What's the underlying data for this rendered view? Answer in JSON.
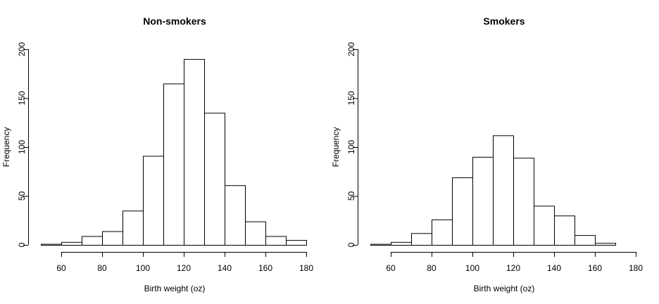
{
  "chart_data": [
    {
      "type": "bar",
      "title": "Non-smokers",
      "xlabel": "Birth weight (oz)",
      "ylabel": "Frequency",
      "bin_edges": [
        50,
        60,
        70,
        80,
        90,
        100,
        110,
        120,
        130,
        140,
        150,
        160,
        170,
        180
      ],
      "values": [
        1,
        3,
        9,
        14,
        35,
        91,
        165,
        190,
        135,
        61,
        24,
        9,
        5
      ],
      "xlim": [
        50,
        180
      ],
      "ylim": [
        0,
        200
      ],
      "xticks": [
        60,
        80,
        100,
        120,
        140,
        160,
        180
      ],
      "yticks": [
        0,
        50,
        100,
        150,
        200
      ]
    },
    {
      "type": "bar",
      "title": "Smokers",
      "xlabel": "Birth weight (oz)",
      "ylabel": "Frequency",
      "bin_edges": [
        50,
        60,
        70,
        80,
        90,
        100,
        110,
        120,
        130,
        140,
        150,
        160,
        170
      ],
      "values": [
        1,
        3,
        12,
        26,
        69,
        90,
        112,
        89,
        40,
        30,
        10,
        2
      ],
      "xlim": [
        50,
        180
      ],
      "ylim": [
        0,
        200
      ],
      "xticks": [
        60,
        80,
        100,
        120,
        140,
        160,
        180
      ],
      "yticks": [
        0,
        50,
        100,
        150,
        200
      ]
    }
  ]
}
